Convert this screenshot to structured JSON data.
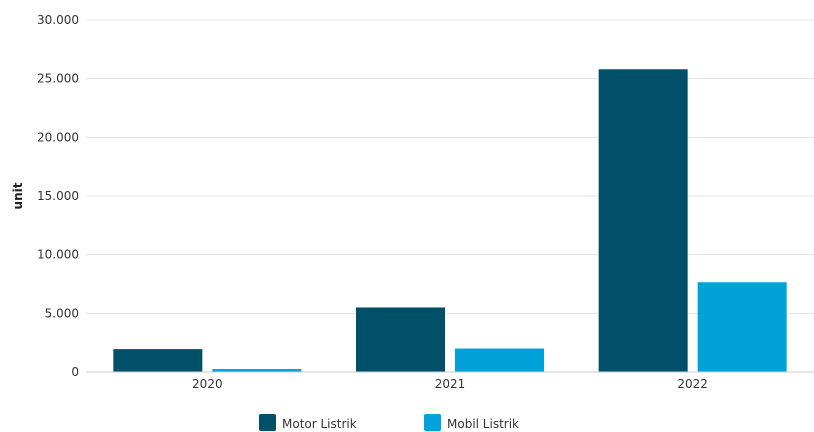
{
  "chart_data": {
    "type": "bar",
    "categories": [
      "2020",
      "2021",
      "2022"
    ],
    "series": [
      {
        "name": "Motor Listrik",
        "color": "#005069",
        "values": [
          1950,
          5500,
          25800
        ]
      },
      {
        "name": "Mobil Listrik",
        "color": "#00A2DA",
        "values": [
          250,
          2000,
          7650
        ]
      }
    ],
    "ylabel": "unit",
    "ylim": [
      0,
      30000
    ],
    "yticks": [
      {
        "value": 0,
        "label": "0"
      },
      {
        "value": 5000,
        "label": "5.000"
      },
      {
        "value": 10000,
        "label": "10.000"
      },
      {
        "value": 15000,
        "label": "15.000"
      },
      {
        "value": 20000,
        "label": "20.000"
      },
      {
        "value": 25000,
        "label": "25.000"
      },
      {
        "value": 30000,
        "label": "30.000"
      }
    ],
    "grid": true,
    "legend": "bottom-center"
  }
}
